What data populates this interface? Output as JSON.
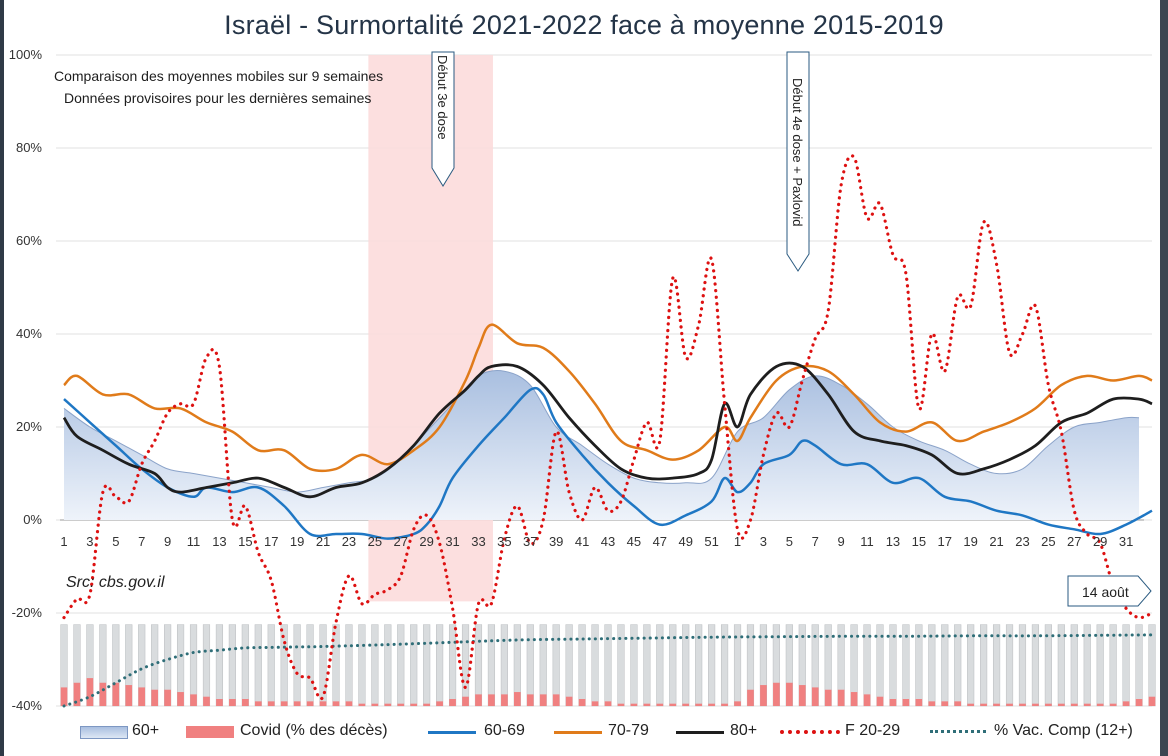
{
  "title": "Israël - Surmortalité 2021-2022 face à moyenne 2015-2019",
  "subtitle_lines": [
    "Comparaison des moyennes mobiles sur 9 semaines",
    "Données provisoires pour les dernières semaines"
  ],
  "source": "Src: cbs.gov.il",
  "annotations": {
    "dose3": "Début 3e dose",
    "dose4": "Début 4e dose + Paxlovid",
    "date_box": "14 août"
  },
  "colors": {
    "s60plus_fill": "#c9d7ec",
    "s60plus_line": "#8ba3c9",
    "covid": "#f08080",
    "bar_bg": "#d9dcde",
    "s60_69": "#1f77c4",
    "s70_79": "#e07b1a",
    "s80plus": "#1e1e1e",
    "f20_29": "#dd1111",
    "vac": "#2f6e78",
    "highlight": "#fcdcdc",
    "title": "#243447"
  },
  "legend": [
    {
      "key": "s60plus",
      "label": "60+"
    },
    {
      "key": "covid",
      "label": "Covid (% des décès)"
    },
    {
      "key": "s60_69",
      "label": "60-69"
    },
    {
      "key": "s70_79",
      "label": "70-79"
    },
    {
      "key": "s80plus",
      "label": "80+"
    },
    {
      "key": "f20_29",
      "label": "F 20-29"
    },
    {
      "key": "vac",
      "label": "% Vac. Comp (12+)"
    }
  ],
  "chart_data": {
    "type": "line",
    "title": "Israël - Surmortalité 2021-2022 face à moyenne 2015-2019",
    "xlabel": "",
    "ylabel": "",
    "ylim": [
      -40,
      100
    ],
    "yticks": [
      -40,
      -20,
      0,
      20,
      40,
      60,
      80,
      100
    ],
    "ytick_labels": [
      "-40%",
      "-20%",
      "0%",
      "20%",
      "40%",
      "60%",
      "80%",
      "100%"
    ],
    "x_note": "weekly index 0-84 : weeks 1-52 of 2021 then weeks 1-32 of 2022",
    "xtick_labels": [
      "1",
      "3",
      "5",
      "7",
      "9",
      "11",
      "13",
      "15",
      "17",
      "19",
      "21",
      "23",
      "25",
      "27",
      "29",
      "31",
      "33",
      "35",
      "37",
      "39",
      "41",
      "43",
      "45",
      "47",
      "49",
      "51",
      "1",
      "3",
      "5",
      "7",
      "9",
      "11",
      "13",
      "15",
      "17",
      "19",
      "21",
      "23",
      "25",
      "27",
      "29",
      "31"
    ],
    "highlight_weeks": [
      23.5,
      32.5
    ],
    "series": [
      {
        "name": "60+",
        "type": "area",
        "x": [
          0,
          2,
          4,
          6,
          8,
          10,
          12,
          14,
          16,
          18,
          20,
          22,
          24,
          26,
          28,
          30,
          32,
          34,
          36,
          38,
          40,
          42,
          44,
          46,
          48,
          50,
          52,
          54,
          56,
          58,
          60,
          62,
          64,
          66,
          68,
          70,
          72,
          74,
          76,
          78,
          80,
          82,
          83
        ],
        "values": [
          24,
          20,
          17,
          14,
          11,
          10,
          9,
          8,
          7,
          6,
          7,
          8,
          9,
          13,
          19,
          25,
          31,
          32,
          29,
          20,
          16,
          12,
          9,
          8,
          8,
          9,
          19,
          22,
          28,
          31,
          29,
          25,
          20,
          17,
          15,
          12,
          10,
          11,
          16,
          20,
          21,
          22,
          22
        ]
      },
      {
        "name": "60-69",
        "type": "line",
        "x": [
          0,
          2,
          4,
          6,
          8,
          10,
          11,
          13,
          15,
          17,
          19,
          21,
          23,
          25,
          27,
          28,
          29,
          30,
          32,
          34,
          36,
          37,
          38,
          40,
          42,
          44,
          46,
          48,
          50,
          51,
          52,
          53,
          54,
          56,
          57,
          58,
          60,
          62,
          64,
          66,
          68,
          70,
          72,
          74,
          76,
          78,
          80,
          82,
          84
        ],
        "values": [
          26,
          21,
          16,
          11,
          7,
          5,
          7,
          6,
          7,
          3,
          -3,
          -3,
          -3,
          -4,
          -3,
          -1,
          3,
          9,
          16,
          22,
          28,
          27,
          21,
          14,
          8,
          3,
          -1,
          1,
          4,
          9,
          6,
          8,
          12,
          14,
          17,
          16,
          12,
          12,
          8,
          9,
          5,
          4,
          2,
          1,
          -1,
          -2,
          -3,
          -1,
          2
        ]
      },
      {
        "name": "70-79",
        "type": "line",
        "x": [
          0,
          1,
          3,
          5,
          7,
          9,
          11,
          13,
          15,
          17,
          19,
          21,
          23,
          25,
          27,
          29,
          31,
          32,
          33,
          35,
          37,
          39,
          41,
          43,
          45,
          47,
          49,
          51,
          52,
          53,
          55,
          57,
          59,
          61,
          63,
          65,
          67,
          69,
          71,
          73,
          75,
          77,
          79,
          81,
          83,
          84
        ],
        "values": [
          29,
          31,
          27,
          27,
          24,
          24,
          21,
          19,
          15,
          15,
          11,
          11,
          14,
          12,
          15,
          20,
          30,
          37,
          42,
          38,
          37,
          32,
          25,
          17,
          15,
          13,
          15,
          20,
          17,
          22,
          30,
          33,
          32,
          27,
          21,
          19,
          21,
          17,
          19,
          21,
          24,
          29,
          31,
          30,
          31,
          30
        ]
      },
      {
        "name": "80+",
        "type": "line",
        "x": [
          0,
          1,
          3,
          5,
          7,
          8,
          9,
          11,
          13,
          15,
          17,
          19,
          21,
          23,
          25,
          27,
          29,
          31,
          32,
          33,
          35,
          37,
          39,
          41,
          43,
          45,
          47,
          49,
          50,
          51,
          52,
          53,
          55,
          57,
          59,
          61,
          63,
          65,
          67,
          69,
          71,
          73,
          75,
          77,
          79,
          81,
          83,
          84
        ],
        "values": [
          22,
          18,
          15,
          12,
          10,
          7,
          6,
          7,
          8,
          9,
          7,
          5,
          7,
          8,
          11,
          16,
          23,
          28,
          31,
          33,
          33,
          29,
          22,
          16,
          11,
          9,
          9,
          10,
          13,
          25,
          20,
          27,
          33,
          33,
          27,
          19,
          17,
          16,
          14,
          10,
          11,
          13,
          16,
          21,
          23,
          26,
          26,
          25
        ]
      },
      {
        "name": "F 20-29",
        "type": "line",
        "x": [
          0,
          1,
          2,
          3,
          4,
          5,
          6,
          7,
          8,
          9,
          10,
          11,
          12,
          13,
          14,
          15,
          16,
          17,
          18,
          19,
          20,
          21,
          22,
          23,
          24,
          25,
          26,
          27,
          28,
          29,
          30,
          31,
          32,
          33,
          34,
          35,
          36,
          37,
          38,
          39,
          40,
          41,
          42,
          43,
          44,
          45,
          46,
          47,
          48,
          49,
          50,
          51,
          52,
          53,
          54,
          55,
          56,
          57,
          58,
          59,
          60,
          61,
          62,
          63,
          64,
          65,
          66,
          67,
          68,
          69,
          70,
          71,
          72,
          73,
          74,
          75,
          76,
          77,
          78,
          79,
          80,
          81,
          82,
          83,
          84
        ],
        "values": [
          -21,
          -17,
          -16,
          6,
          5,
          4,
          12,
          17,
          23,
          25,
          25,
          35,
          33,
          0,
          3,
          -7,
          -13,
          -26,
          -33,
          -34,
          -38,
          -22,
          -12,
          -18,
          -16,
          -15,
          -12,
          -2,
          1,
          -5,
          -19,
          -36,
          -18,
          -18,
          -4,
          3,
          -5,
          0,
          19,
          6,
          0,
          7,
          2,
          4,
          13,
          21,
          17,
          52,
          35,
          42,
          56,
          25,
          -2,
          0,
          14,
          23,
          20,
          30,
          39,
          45,
          72,
          78,
          65,
          68,
          57,
          53,
          24,
          40,
          32,
          48,
          46,
          64,
          55,
          36,
          40,
          46,
          29,
          19,
          2,
          -3,
          -5,
          -14,
          -19,
          -21,
          -20
        ]
      },
      {
        "name": "% Vac. Comp (12+)",
        "type": "line",
        "x": [
          0,
          2,
          4,
          6,
          8,
          10,
          12,
          14,
          16,
          18,
          20,
          25,
          30,
          35,
          40,
          45,
          50,
          55,
          60,
          65,
          70,
          75,
          80,
          84
        ],
        "values": [
          -40,
          -38,
          -35,
          -32,
          -30,
          -28.5,
          -28,
          -27.5,
          -27.4,
          -27.3,
          -27.2,
          -26.8,
          -26.3,
          -25.8,
          -25.6,
          -25.4,
          -25.2,
          -25.1,
          -25.0,
          -25.0,
          -24.9,
          -24.9,
          -24.8,
          -24.7
        ]
      },
      {
        "name": "Covid (% des décès)",
        "type": "bar",
        "base": -40,
        "values": [
          4,
          5,
          6,
          5,
          5,
          4.5,
          4,
          3.5,
          3.5,
          3,
          2.5,
          2,
          1.5,
          1.5,
          1.5,
          1,
          1,
          1,
          1,
          1,
          1,
          1,
          1,
          0.5,
          0.5,
          0.5,
          0.5,
          0.5,
          0.5,
          1,
          1.5,
          2,
          2.5,
          2.5,
          2.5,
          3,
          2.5,
          2.5,
          2.5,
          2,
          1.5,
          1,
          1,
          0.5,
          0.5,
          0.5,
          0.5,
          0.5,
          0.5,
          0.5,
          0.5,
          0.5,
          1,
          3.5,
          4.5,
          5,
          5,
          4.5,
          4,
          3.5,
          3.5,
          3,
          2.5,
          2,
          1.5,
          1.5,
          1.5,
          1,
          1,
          1,
          0.5,
          0.5,
          0.5,
          0.5,
          0.5,
          0.5,
          0.5,
          0.5,
          0.5,
          0.5,
          0.5,
          0.5,
          1,
          1.5,
          2
        ]
      }
    ]
  }
}
